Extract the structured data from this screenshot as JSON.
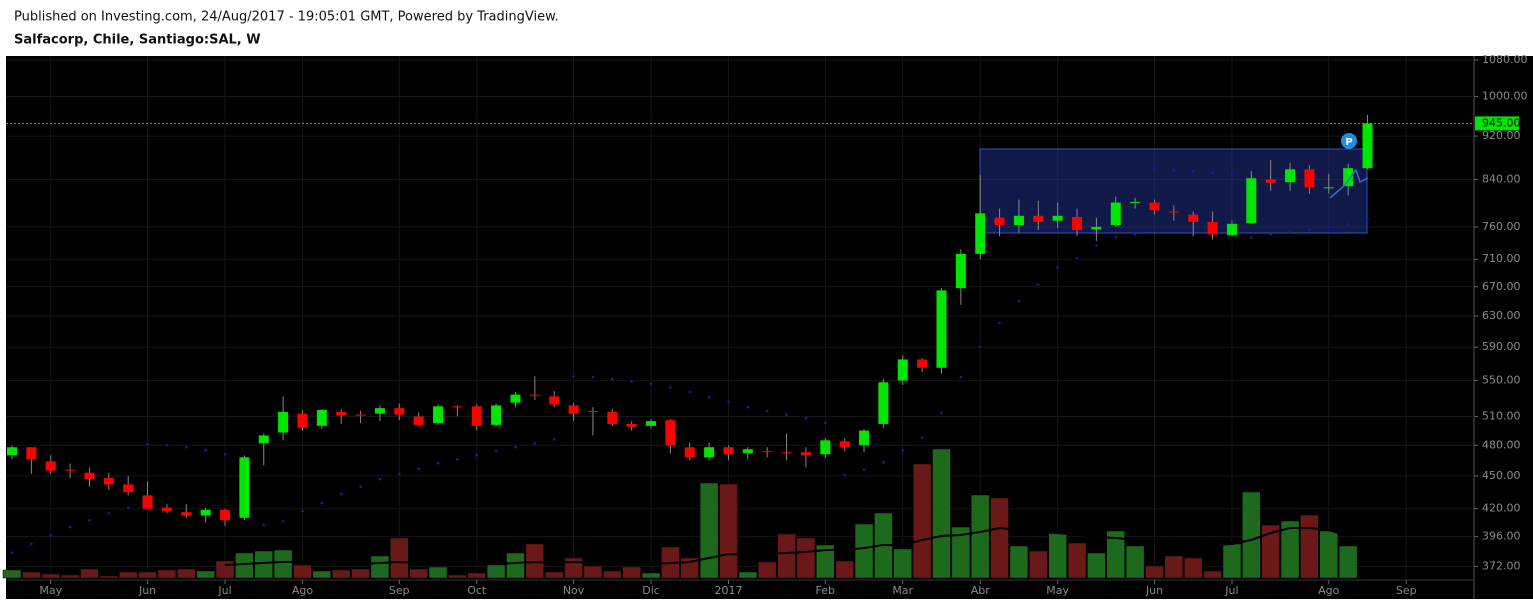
{
  "header": {
    "published": "Published on Investing.com, 24/Aug/2017 - 19:05:01 GMT, Powered by TradingView.",
    "symbol": "Salfacorp, Chile, Santiago:SAL, W"
  },
  "chart_data": {
    "type": "candlestick",
    "log_scale": true,
    "grid": true,
    "up_color": "#00e600",
    "down_color": "#ff0000",
    "volume_up_color": "#1d6a1d",
    "volume_down_color": "#6a1818",
    "volume_ma_color": "#000000",
    "sar_color": "#1b1ba8",
    "last_price_color": "#00e600",
    "xlim": [
      -0.31,
      75.5
    ],
    "xticks": [
      {
        "value": 2,
        "label": "May"
      },
      {
        "value": 7,
        "label": "Jun"
      },
      {
        "value": 11,
        "label": "Jul"
      },
      {
        "value": 15,
        "label": "Ago"
      },
      {
        "value": 20,
        "label": "Sep"
      },
      {
        "value": 24,
        "label": "Oct"
      },
      {
        "value": 29,
        "label": "Nov"
      },
      {
        "value": 33,
        "label": "Dic"
      },
      {
        "value": 37,
        "label": "2017"
      },
      {
        "value": 42,
        "label": "Feb"
      },
      {
        "value": 46,
        "label": "Mar"
      },
      {
        "value": 50,
        "label": "Abr"
      },
      {
        "value": 54,
        "label": "May"
      },
      {
        "value": 59,
        "label": "Jun"
      },
      {
        "value": 63,
        "label": "Jul"
      },
      {
        "value": 68,
        "label": "Ago"
      },
      {
        "value": 72,
        "label": "Sep"
      }
    ],
    "ylim": [
      363,
      1089
    ],
    "yticks": [
      {
        "value": 372,
        "label": "372.00"
      },
      {
        "value": 396,
        "label": "396.00"
      },
      {
        "value": 420,
        "label": "420.00"
      },
      {
        "value": 450,
        "label": "450.00"
      },
      {
        "value": 480,
        "label": "480.00"
      },
      {
        "value": 510,
        "label": "510.00"
      },
      {
        "value": 550,
        "label": "550.00"
      },
      {
        "value": 590,
        "label": "590.00"
      },
      {
        "value": 630,
        "label": "630.00"
      },
      {
        "value": 670,
        "label": "670.00"
      },
      {
        "value": 710,
        "label": "710.00"
      },
      {
        "value": 760,
        "label": "760.00"
      },
      {
        "value": 840,
        "label": "840.00"
      },
      {
        "value": 920,
        "label": "920.00"
      },
      {
        "value": 1000,
        "label": "1000.00"
      },
      {
        "value": 1080,
        "label": "1080.00"
      }
    ],
    "last_price": {
      "value": 945,
      "label": "945.00"
    },
    "marker_label": "P",
    "open": [
      470,
      478,
      464,
      456,
      453,
      448,
      442,
      432,
      421,
      417,
      414,
      419,
      412,
      482,
      493,
      513,
      500,
      515,
      512,
      513,
      519,
      510,
      503,
      521,
      521,
      501,
      525,
      534,
      532,
      522,
      516,
      515,
      502,
      500,
      506,
      478,
      468,
      478,
      472,
      474,
      473,
      473,
      471,
      484,
      480,
      502,
      550,
      575,
      565,
      668,
      718,
      775,
      763,
      778,
      770,
      776,
      756,
      763,
      800,
      800,
      785,
      780,
      768,
      747,
      766,
      840,
      835,
      858,
      826,
      828,
      860
    ],
    "high": [
      480,
      478,
      470,
      462,
      458,
      453,
      450,
      445,
      424,
      424,
      421,
      420,
      470,
      492,
      532,
      517,
      518,
      518,
      516,
      522,
      524,
      514,
      523,
      522,
      523,
      524,
      537,
      555,
      538,
      525,
      520,
      518,
      505,
      507,
      507,
      483,
      483,
      480,
      478,
      478,
      492,
      478,
      487,
      487,
      497,
      552,
      580,
      577,
      668,
      725,
      848,
      790,
      805,
      803,
      800,
      790,
      775,
      810,
      808,
      805,
      795,
      785,
      785,
      770,
      855,
      875,
      870,
      865,
      850,
      868,
      962
    ],
    "low": [
      466,
      452,
      452,
      448,
      440,
      437,
      432,
      420,
      416,
      412,
      408,
      405,
      410,
      460,
      485,
      495,
      497,
      502,
      503,
      505,
      506,
      500,
      501,
      510,
      495,
      500,
      520,
      528,
      520,
      505,
      490,
      500,
      495,
      497,
      472,
      465,
      465,
      465,
      466,
      468,
      465,
      458,
      467,
      474,
      473,
      498,
      545,
      560,
      558,
      645,
      710,
      745,
      750,
      755,
      758,
      745,
      738,
      760,
      790,
      780,
      770,
      745,
      740,
      745,
      765,
      820,
      820,
      815,
      815,
      812,
      858
    ],
    "close": [
      478,
      466,
      455,
      455,
      447,
      442,
      435,
      420,
      418,
      414,
      419,
      410,
      468,
      490,
      515,
      498,
      517,
      511,
      511,
      519,
      512,
      501,
      521,
      520,
      500,
      522,
      534,
      533,
      523,
      513,
      515,
      502,
      499,
      505,
      480,
      468,
      478,
      471,
      476,
      473,
      472,
      470,
      485,
      478,
      495,
      548,
      575,
      565,
      665,
      718,
      782,
      763,
      778,
      768,
      778,
      755,
      760,
      800,
      801,
      787,
      784,
      768,
      748,
      765,
      842,
      834,
      858,
      826,
      826,
      860,
      945
    ],
    "volume_lim": [
      0,
      130
    ],
    "volume": [
      8,
      6,
      4,
      3,
      9,
      2,
      6,
      6,
      8,
      9,
      7,
      17,
      25,
      27,
      28,
      13,
      7,
      8,
      9,
      22,
      40,
      9,
      11,
      3,
      5,
      13,
      25,
      34,
      6,
      20,
      12,
      7,
      11,
      5,
      31,
      20,
      95,
      94,
      6,
      16,
      44,
      40,
      33,
      17,
      54,
      65,
      29,
      114,
      129,
      51,
      83,
      80,
      32,
      27,
      45,
      35,
      25,
      47,
      32,
      12,
      22,
      20,
      7,
      34,
      86,
      53,
      57,
      63,
      47,
      32,
      null
    ],
    "volume_ma": [
      null,
      null,
      null,
      null,
      null,
      null,
      null,
      null,
      null,
      null,
      null,
      13,
      14,
      15,
      16,
      16,
      15,
      15,
      14,
      15,
      16,
      15,
      15,
      14,
      14,
      14,
      15,
      16,
      15,
      16,
      15,
      15,
      15,
      14,
      15,
      16,
      20,
      24,
      23,
      24,
      25,
      26,
      28,
      28,
      30,
      33,
      33,
      38,
      42,
      43,
      46,
      50,
      48,
      46,
      45,
      43,
      41,
      40,
      38,
      36,
      35,
      34,
      33,
      34,
      38,
      45,
      50,
      50,
      48,
      42,
      null
    ],
    "sar": [
      383,
      390,
      397,
      404,
      410,
      416,
      421,
      481,
      480,
      478,
      475,
      471,
      467,
      406,
      409,
      418,
      425,
      433,
      440,
      447,
      452,
      457,
      462,
      466,
      470,
      474,
      478,
      482,
      486,
      555,
      554,
      552,
      549,
      546,
      542,
      537,
      531,
      526,
      520,
      516,
      512,
      508,
      503,
      451,
      456,
      463,
      475,
      488,
      514,
      554,
      590,
      621,
      650,
      673,
      698,
      712,
      731,
      744,
      748,
      858,
      856,
      854,
      852,
      850,
      743,
      748,
      752,
      756,
      760,
      764,
      773
    ]
  }
}
